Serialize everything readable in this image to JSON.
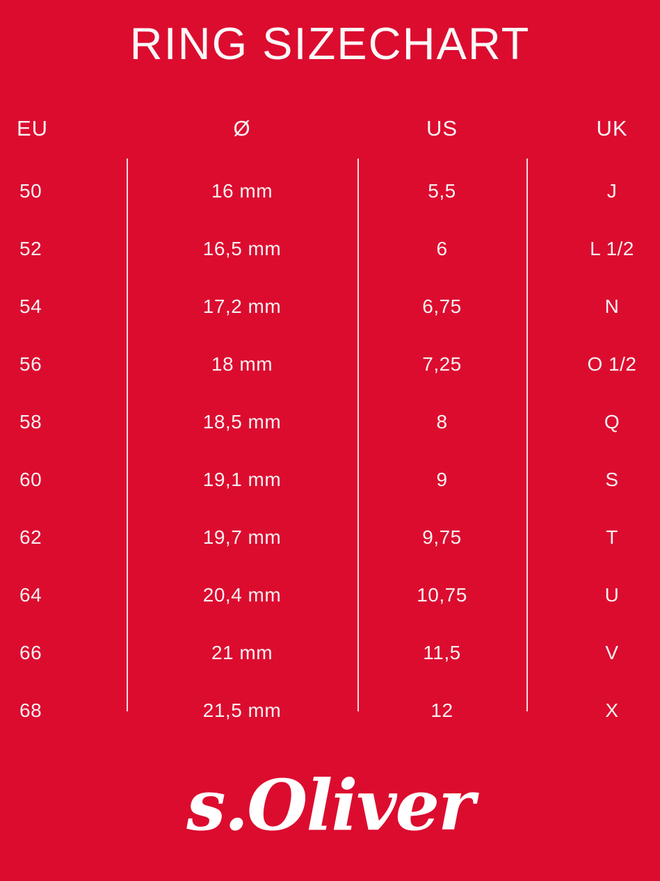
{
  "title": "RING SIZECHART",
  "colors": {
    "background": "#DC0C2F",
    "text": "#FFFFFF",
    "divider": "rgba(255,255,255,0.85)"
  },
  "table": {
    "headers": [
      "EU",
      "Ø",
      "US",
      "UK"
    ],
    "rows": [
      [
        "50",
        "16 mm",
        "5,5",
        "J"
      ],
      [
        "52",
        "16,5 mm",
        "6",
        "L 1/2"
      ],
      [
        "54",
        "17,2 mm",
        "6,75",
        "N"
      ],
      [
        "56",
        "18 mm",
        "7,25",
        "O 1/2"
      ],
      [
        "58",
        "18,5 mm",
        "8",
        "Q"
      ],
      [
        "60",
        "19,1 mm",
        "9",
        "S"
      ],
      [
        "62",
        "19,7 mm",
        "9,75",
        "T"
      ],
      [
        "64",
        "20,4 mm",
        "10,75",
        "U"
      ],
      [
        "66",
        "21 mm",
        "11,5",
        "V"
      ],
      [
        "68",
        "21,5 mm",
        "12",
        "X"
      ]
    ]
  },
  "brand": {
    "logo_text": "s.Oliver"
  },
  "chart_data": {
    "type": "table",
    "title": "RING SIZECHART",
    "columns": [
      "EU",
      "Ø",
      "US",
      "UK"
    ],
    "rows": [
      [
        "50",
        "16 mm",
        "5,5",
        "J"
      ],
      [
        "52",
        "16,5 mm",
        "6",
        "L 1/2"
      ],
      [
        "54",
        "17,2 mm",
        "6,75",
        "N"
      ],
      [
        "56",
        "18 mm",
        "7,25",
        "O 1/2"
      ],
      [
        "58",
        "18,5 mm",
        "8",
        "Q"
      ],
      [
        "60",
        "19,1 mm",
        "9",
        "S"
      ],
      [
        "62",
        "19,7 mm",
        "9,75",
        "T"
      ],
      [
        "64",
        "20,4 mm",
        "10,75",
        "U"
      ],
      [
        "66",
        "21 mm",
        "11,5",
        "V"
      ],
      [
        "68",
        "21,5 mm",
        "12",
        "X"
      ]
    ]
  }
}
